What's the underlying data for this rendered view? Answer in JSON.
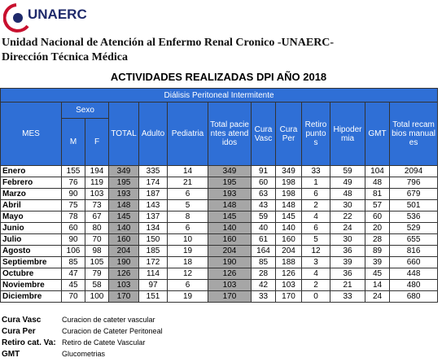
{
  "header": {
    "logo": "UNAERC",
    "title_line1": "Unidad Nacional de Atención al Enfermo Renal Cronico -UNAERC-",
    "title_line2": "Dirección Técnica Médica",
    "subtitle": "ACTIVIDADES REALIZADAS DPI AÑO 2018"
  },
  "table": {
    "section": "Diálisis Peritoneal Intermitente",
    "group": "Sexo",
    "columns": [
      "MES",
      "M",
      "F",
      "TOTAL",
      "Adulto",
      "Pediatria",
      "Total pacientes atendidos",
      "Cura Vasc",
      "Cura Per",
      "Retiro puntos",
      "Hipodermia",
      "GMT",
      "Total recambios manuales"
    ],
    "rows": [
      [
        "Enero",
        155,
        194,
        349,
        335,
        14,
        349,
        91,
        349,
        33,
        59,
        104,
        2094
      ],
      [
        "Febrero",
        76,
        119,
        195,
        174,
        21,
        195,
        60,
        198,
        1,
        49,
        48,
        796
      ],
      [
        "Marzo",
        90,
        103,
        193,
        187,
        6,
        193,
        63,
        198,
        6,
        48,
        81,
        679
      ],
      [
        "Abril",
        75,
        73,
        148,
        143,
        5,
        148,
        43,
        148,
        2,
        30,
        57,
        501
      ],
      [
        "Mayo",
        78,
        67,
        145,
        137,
        8,
        145,
        59,
        145,
        4,
        22,
        60,
        536
      ],
      [
        "Junio",
        60,
        80,
        140,
        134,
        6,
        140,
        40,
        140,
        6,
        24,
        20,
        529
      ],
      [
        "Julio",
        90,
        70,
        160,
        150,
        10,
        160,
        61,
        160,
        5,
        30,
        28,
        655
      ],
      [
        "Agosto",
        106,
        98,
        204,
        185,
        19,
        204,
        164,
        204,
        12,
        36,
        89,
        816
      ],
      [
        "Septiembre",
        85,
        105,
        190,
        172,
        18,
        190,
        85,
        188,
        3,
        39,
        39,
        660
      ],
      [
        "Octubre",
        47,
        79,
        126,
        114,
        12,
        126,
        28,
        126,
        4,
        36,
        45,
        448
      ],
      [
        "Noviembre",
        45,
        58,
        103,
        97,
        6,
        103,
        42,
        103,
        2,
        21,
        14,
        480
      ],
      [
        "Diciembre",
        70,
        100,
        170,
        151,
        19,
        170,
        33,
        170,
        0,
        33,
        24,
        680
      ]
    ]
  },
  "legend": [
    [
      "Cura Vasc",
      "Curacion de cateter vascular"
    ],
    [
      "Cura Per",
      "Curacion de Cateter Peritoneal"
    ],
    [
      "Retiro cat. Va:",
      "Retiro de Catete Vascular"
    ],
    [
      "GMT",
      "Glucometrias"
    ]
  ]
}
